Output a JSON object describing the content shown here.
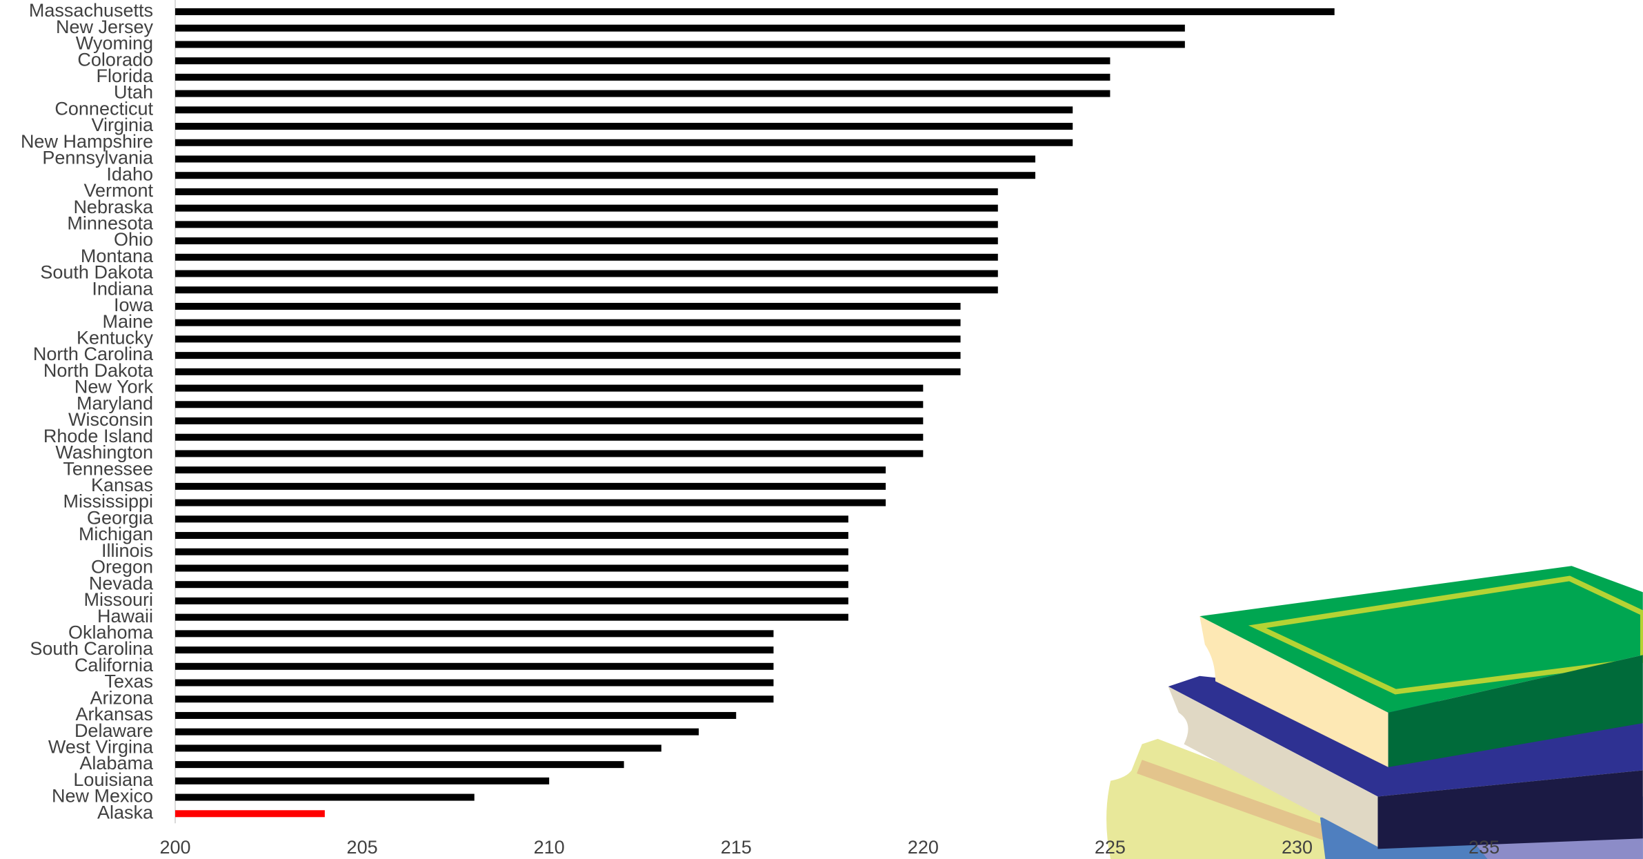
{
  "chart_data": {
    "type": "hbar",
    "categories": [
      "Massachusetts",
      "New Jersey",
      "Wyoming",
      "Colorado",
      "Florida",
      "Utah",
      "Connecticut",
      "Virginia",
      "New Hampshire",
      "Pennsylvania",
      "Idaho",
      "Vermont",
      "Nebraska",
      "Minnesota",
      "Ohio",
      "Montana",
      "South Dakota",
      "Indiana",
      "Iowa",
      "Maine",
      "Kentucky",
      "North Carolina",
      "North Dakota",
      "New York",
      "Maryland",
      "Wisconsin",
      "Rhode Island",
      "Washington",
      "Tennessee",
      "Kansas",
      "Mississippi",
      "Georgia",
      "Michigan",
      "Illinois",
      "Oregon",
      "Nevada",
      "Missouri",
      "Hawaii",
      "Oklahoma",
      "South Carolina",
      "California",
      "Texas",
      "Arizona",
      "Arkansas",
      "Delaware",
      "West Virgina",
      "Alabama",
      "Louisiana",
      "New Mexico",
      "Alaska"
    ],
    "values": [
      231,
      227,
      227,
      225,
      225,
      225,
      224,
      224,
      224,
      223,
      223,
      222,
      222,
      222,
      222,
      222,
      222,
      222,
      221,
      221,
      221,
      221,
      221,
      220,
      220,
      220,
      220,
      220,
      219,
      219,
      219,
      218,
      218,
      218,
      218,
      218,
      218,
      218,
      216,
      216,
      216,
      216,
      216,
      215,
      214,
      213,
      212,
      210,
      208,
      204
    ],
    "colors": [
      "#000000",
      "#000000",
      "#000000",
      "#000000",
      "#000000",
      "#000000",
      "#000000",
      "#000000",
      "#000000",
      "#000000",
      "#000000",
      "#000000",
      "#000000",
      "#000000",
      "#000000",
      "#000000",
      "#000000",
      "#000000",
      "#000000",
      "#000000",
      "#000000",
      "#000000",
      "#000000",
      "#000000",
      "#000000",
      "#000000",
      "#000000",
      "#000000",
      "#000000",
      "#000000",
      "#000000",
      "#000000",
      "#000000",
      "#000000",
      "#000000",
      "#000000",
      "#000000",
      "#000000",
      "#000000",
      "#000000",
      "#000000",
      "#000000",
      "#000000",
      "#000000",
      "#000000",
      "#000000",
      "#000000",
      "#000000",
      "#000000",
      "#ff0000"
    ],
    "xlim": [
      200,
      239.25
    ],
    "xticks": [
      200,
      205,
      210,
      215,
      220,
      225,
      230,
      235
    ],
    "grid": false
  }
}
